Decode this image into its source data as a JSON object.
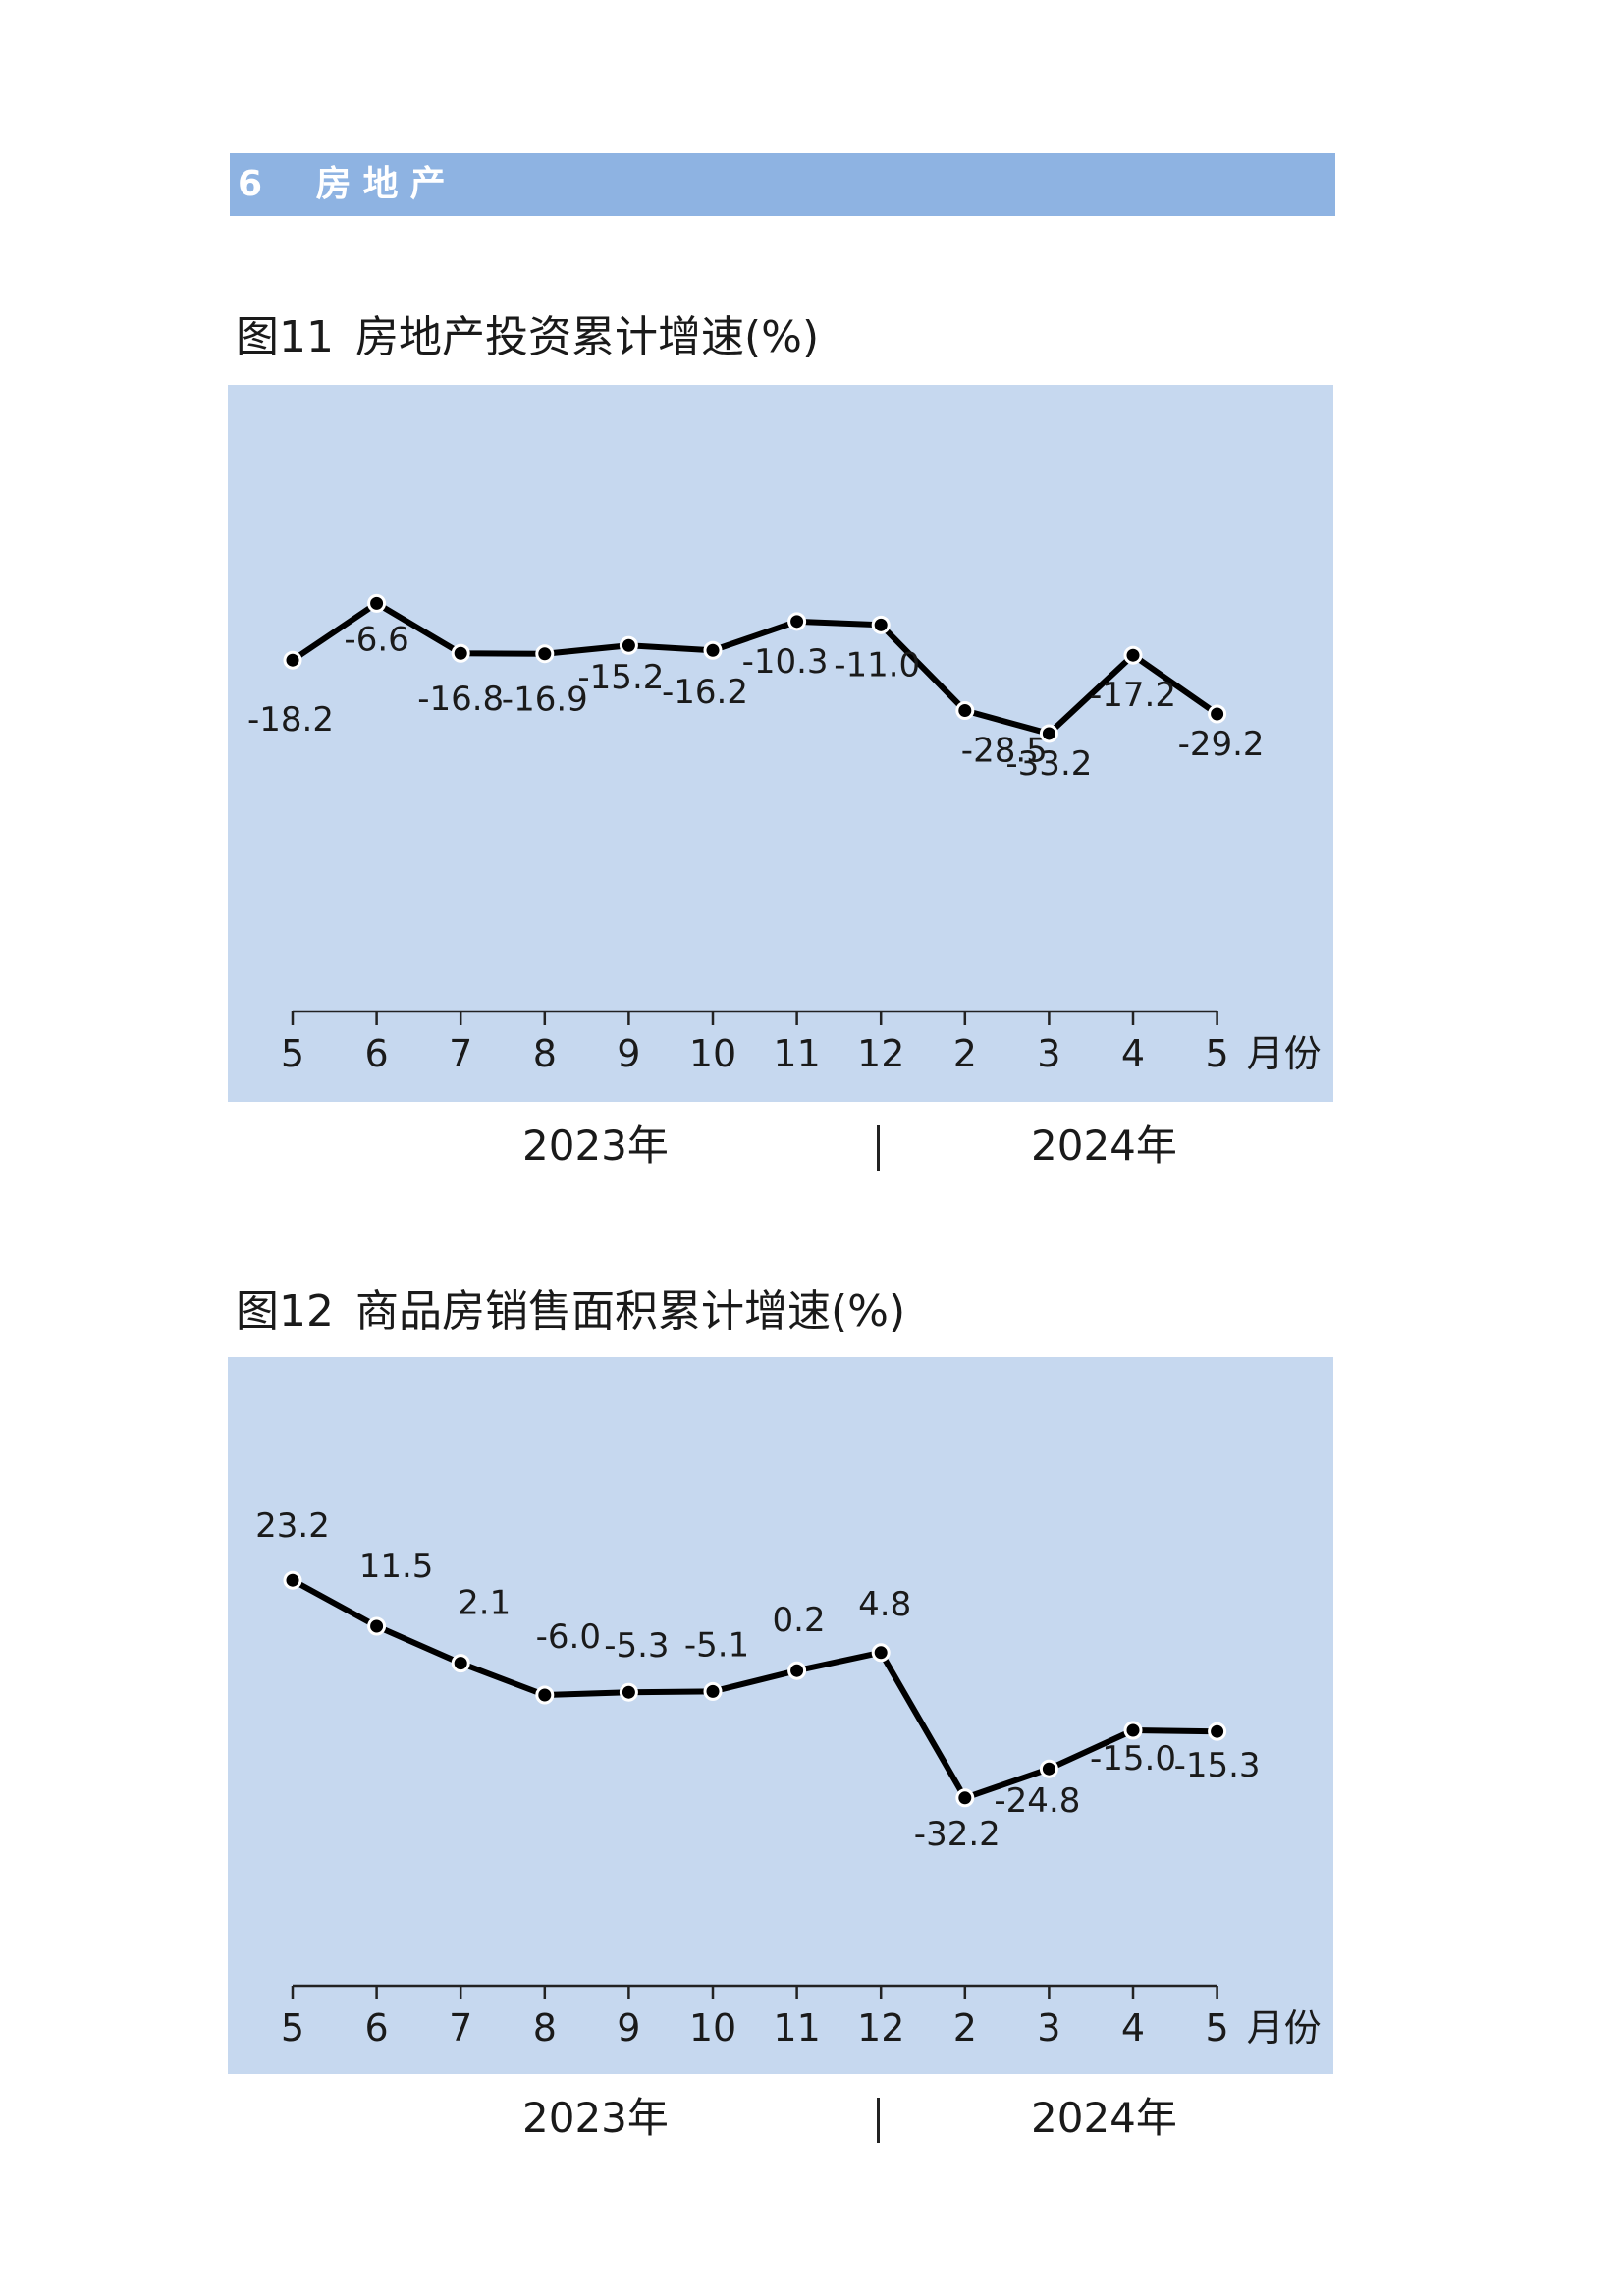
{
  "section": {
    "number": "6",
    "title": "房地产"
  },
  "charts": [
    {
      "caption_num": "图11",
      "caption_text": "房地产投资累计增速(%)",
      "month_unit": "月份",
      "year_left": "2023年",
      "year_right": "2024年"
    },
    {
      "caption_num": "图12",
      "caption_text": "商品房销售面积累计增速(%)",
      "month_unit": "月份",
      "year_left": "2023年",
      "year_right": "2024年"
    }
  ],
  "colors": {
    "panel": "#c6d8ef",
    "header": "#8eb3e2",
    "line": "#000000"
  },
  "chart_data": [
    {
      "type": "line",
      "title": "房地产投资累计增速(%)",
      "categories": [
        "5",
        "6",
        "7",
        "8",
        "9",
        "10",
        "11",
        "12",
        "2",
        "3",
        "4",
        "5"
      ],
      "category_years": [
        "2023年",
        "2023年",
        "2023年",
        "2023年",
        "2023年",
        "2023年",
        "2023年",
        "2023年",
        "2024年",
        "2024年",
        "2024年",
        "2024年"
      ],
      "series": [
        {
          "values": [
            -18.2,
            -6.6,
            -16.8,
            -16.9,
            -15.2,
            -16.2,
            -10.3,
            -11.0,
            -28.5,
            -33.2,
            -17.2,
            -29.2
          ]
        }
      ],
      "labels": [
        "-18.2",
        "-6.6",
        "-16.8",
        "-16.9",
        "-15.2",
        "-16.2",
        "-10.3",
        "-11.0",
        "-28.5",
        "-33.2",
        "-17.2",
        "-29.2"
      ],
      "ylim": [
        -90,
        30
      ],
      "grid": false,
      "xunit": "月份"
    },
    {
      "type": "line",
      "title": "商品房销售面积累计增速(%)",
      "categories": [
        "5",
        "6",
        "7",
        "8",
        "9",
        "10",
        "11",
        "12",
        "2",
        "3",
        "4",
        "5"
      ],
      "category_years": [
        "2023年",
        "2023年",
        "2023年",
        "2023年",
        "2023年",
        "2023年",
        "2023年",
        "2023年",
        "2024年",
        "2024年",
        "2024年",
        "2024年"
      ],
      "series": [
        {
          "values": [
            23.2,
            11.5,
            2.1,
            -6.0,
            -5.3,
            -5.1,
            0.2,
            4.8,
            -32.2,
            -24.8,
            -15.0,
            -15.3
          ]
        }
      ],
      "labels": [
        "23.2",
        "11.5",
        "2.1",
        "-6.0",
        "-5.3",
        "-5.1",
        "0.2",
        "4.8",
        "-32.2",
        "-24.8",
        "-15.0",
        "-15.3"
      ],
      "ylim": [
        -80,
        70
      ],
      "grid": false,
      "xunit": "月份"
    }
  ]
}
